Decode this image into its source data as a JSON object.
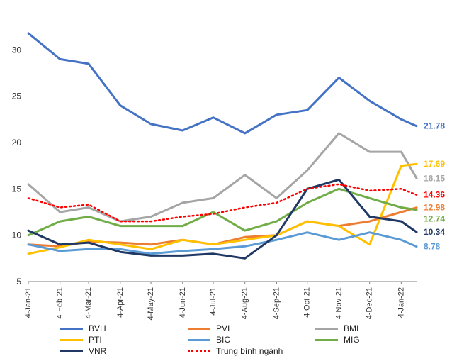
{
  "chart_data": {
    "type": "line",
    "title": "",
    "xlabel": "",
    "ylabel": "",
    "ylim": [
      5,
      35
    ],
    "y_ticks": [
      5,
      10,
      15,
      20,
      25,
      30
    ],
    "x_ticks": [
      "4-Jan-21",
      "4-Feb-21",
      "4-Mar-21",
      "4-Apr-21",
      "4-May-21",
      "4-Jun-21",
      "4-Jul-21",
      "4-Aug-21",
      "4-Sep-21",
      "4-Oct-21",
      "4-Nov-21",
      "4-Dec-21",
      "4-Jan-22"
    ],
    "x": [
      "4-Jan-21",
      "4-Feb-21",
      "4-Mar-21",
      "4-Apr-21",
      "4-May-21",
      "4-Jun-21",
      "4-Jul-21",
      "4-Aug-21",
      "4-Sep-21",
      "4-Oct-21",
      "4-Nov-21",
      "4-Dec-21",
      "4-Jan-22",
      "19-Jan-22"
    ],
    "grid": false,
    "legend_position": "bottom",
    "series": [
      {
        "name": "BVH",
        "color": "#4472C4",
        "dash": "solid",
        "end_label": "21.78",
        "values": [
          31.8,
          29.0,
          28.5,
          24.0,
          22.0,
          21.3,
          22.7,
          21.0,
          23.0,
          23.5,
          27.0,
          24.5,
          22.5,
          21.78
        ]
      },
      {
        "name": "PVI",
        "color": "#ED7D31",
        "dash": "solid",
        "end_label": "12.98",
        "values": [
          9.0,
          8.8,
          9.3,
          9.2,
          9.0,
          9.5,
          9.0,
          9.8,
          10.0,
          11.5,
          11.0,
          11.5,
          12.5,
          12.98
        ]
      },
      {
        "name": "BMI",
        "color": "#A5A5A5",
        "dash": "solid",
        "end_label": "16.15",
        "values": [
          15.5,
          12.5,
          13.0,
          11.5,
          12.0,
          13.5,
          14.0,
          16.5,
          14.0,
          17.0,
          21.0,
          19.0,
          19.0,
          16.15
        ]
      },
      {
        "name": "PTI",
        "color": "#FFC000",
        "dash": "solid",
        "end_label": "17.69",
        "values": [
          8.0,
          8.7,
          9.5,
          9.0,
          8.5,
          9.5,
          9.0,
          9.5,
          10.0,
          11.5,
          11.0,
          9.0,
          17.5,
          17.69
        ]
      },
      {
        "name": "BIC",
        "color": "#5B9BD5",
        "dash": "solid",
        "end_label": "8.78",
        "values": [
          9.0,
          8.3,
          8.5,
          8.5,
          8.0,
          8.3,
          8.5,
          8.8,
          9.5,
          10.3,
          9.5,
          10.3,
          9.5,
          8.78
        ]
      },
      {
        "name": "MIG",
        "color": "#70AD47",
        "dash": "solid",
        "end_label": "12.74",
        "values": [
          10.0,
          11.5,
          12.0,
          11.0,
          11.0,
          11.0,
          12.5,
          10.5,
          11.5,
          13.5,
          15.0,
          14.0,
          13.0,
          12.74
        ]
      },
      {
        "name": "VNR",
        "color": "#203864",
        "dash": "solid",
        "end_label": "10.34",
        "values": [
          10.5,
          9.0,
          9.2,
          8.2,
          7.8,
          7.8,
          8.0,
          7.5,
          10.0,
          15.0,
          16.0,
          12.0,
          11.5,
          10.34
        ]
      },
      {
        "name": "Trung bình ngành",
        "color": "#FF0000",
        "dash": "dotted",
        "end_label": "14.36",
        "values": [
          14.0,
          13.0,
          13.3,
          11.5,
          11.5,
          12.0,
          12.3,
          13.0,
          13.5,
          15.0,
          15.5,
          14.8,
          15.0,
          14.36
        ]
      }
    ]
  }
}
